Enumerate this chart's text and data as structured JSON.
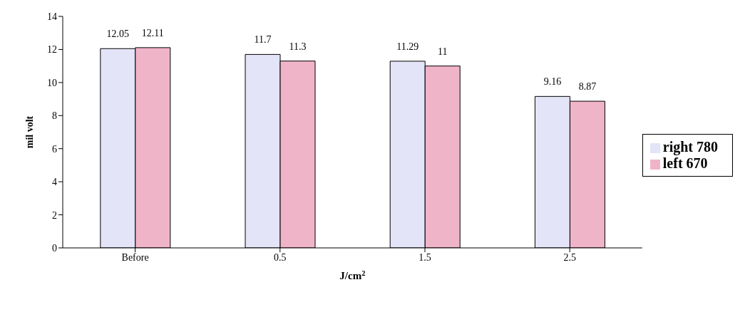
{
  "chart_data": {
    "type": "bar",
    "xlabel": "J/cm$^{2}$",
    "ylabel": "mil volt",
    "categories": [
      "Before",
      "0.5",
      "1.5",
      "2.5"
    ],
    "series": [
      {
        "name": "right 780",
        "color": "#e4e4f8",
        "values": [
          12.05,
          11.7,
          11.29,
          9.16
        ]
      },
      {
        "name": "left 670",
        "color": "#f0b4c8",
        "values": [
          12.11,
          11.3,
          11,
          8.87
        ]
      }
    ],
    "ylim": [
      0,
      14
    ],
    "yticks": [
      0,
      2,
      4,
      6,
      8,
      10,
      12,
      14
    ],
    "grid": false,
    "legend": "right",
    "data_labels": true
  }
}
